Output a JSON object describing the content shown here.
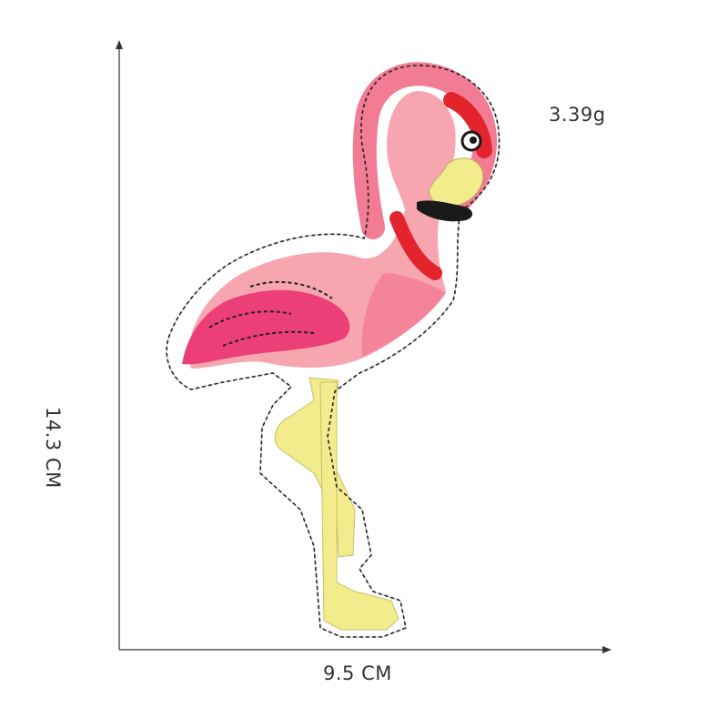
{
  "product": {
    "weight": "3.39g",
    "height": "14.3 CM",
    "width": "9.5 CM",
    "subject": "flamingo-embroidered-patch"
  },
  "colors": {
    "background": "#ffffff",
    "patch_border": "#ffffff",
    "stitch": "#222222",
    "pink_light": "#f7a6b0",
    "pink_mid": "#f27c93",
    "pink_hot": "#ec3f78",
    "red": "#e3242c",
    "yellow": "#f2ec8c",
    "black": "#1a1a1a",
    "axis": "#333333"
  }
}
